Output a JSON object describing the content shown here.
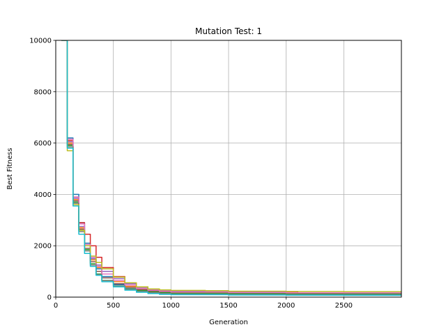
{
  "chart_data": {
    "type": "line",
    "title": "Mutation Test: 1",
    "xlabel": "Generation",
    "ylabel": "Best Fitness",
    "xlim": [
      0,
      3000
    ],
    "ylim": [
      0,
      10000
    ],
    "xticks": [
      0,
      500,
      1000,
      1500,
      2000,
      2500
    ],
    "yticks": [
      0,
      2000,
      4000,
      6000,
      8000,
      10000
    ],
    "grid": true,
    "series": [
      {
        "color": "#1f77b4",
        "x": [
          50,
          100,
          150,
          200,
          250,
          300,
          350,
          400,
          500,
          600,
          700,
          800,
          900,
          1000,
          1500,
          2000,
          2500,
          3000
        ],
        "y": [
          10000,
          6200,
          4000,
          2900,
          2100,
          1500,
          1100,
          800,
          480,
          330,
          230,
          160,
          130,
          110,
          95,
          90,
          85,
          80
        ]
      },
      {
        "color": "#ff7f0e",
        "x": [
          50,
          100,
          150,
          200,
          250,
          300,
          350,
          400,
          500,
          600,
          700,
          800,
          900,
          1000,
          1500,
          2000,
          2500,
          3000
        ],
        "y": [
          10000,
          6000,
          3800,
          2700,
          2000,
          1450,
          1150,
          900,
          600,
          420,
          300,
          230,
          200,
          180,
          160,
          150,
          145,
          140
        ]
      },
      {
        "color": "#2ca02c",
        "x": [
          50,
          100,
          150,
          200,
          250,
          300,
          350,
          400,
          500,
          600,
          700,
          800,
          900,
          1000,
          1500,
          2000,
          2500,
          3000
        ],
        "y": [
          10000,
          5900,
          3700,
          2600,
          1850,
          1300,
          900,
          650,
          430,
          320,
          250,
          200,
          170,
          150,
          130,
          120,
          115,
          110
        ]
      },
      {
        "color": "#d62728",
        "x": [
          50,
          100,
          150,
          200,
          250,
          300,
          350,
          400,
          500,
          600,
          700,
          800,
          900,
          1000,
          1500,
          1700,
          2000,
          2090,
          2100,
          2500,
          3000
        ],
        "y": [
          10000,
          6100,
          3900,
          2900,
          2450,
          2000,
          1550,
          1150,
          800,
          550,
          400,
          320,
          270,
          240,
          215,
          215,
          215,
          215,
          160,
          160,
          160
        ]
      },
      {
        "color": "#9467bd",
        "x": [
          50,
          100,
          150,
          200,
          250,
          300,
          350,
          400,
          500,
          600,
          700,
          800,
          900,
          1000,
          1500,
          1670,
          2000,
          2500,
          3000
        ],
        "y": [
          10000,
          6050,
          3850,
          2750,
          2000,
          1500,
          1250,
          1000,
          720,
          520,
          380,
          300,
          260,
          240,
          220,
          210,
          170,
          160,
          160
        ]
      },
      {
        "color": "#8c564b",
        "x": [
          50,
          100,
          150,
          200,
          250,
          300,
          350,
          400,
          500,
          600,
          700,
          800,
          900,
          1000,
          1500,
          2000,
          2500,
          3000
        ],
        "y": [
          10000,
          5950,
          3750,
          2650,
          1900,
          1380,
          1000,
          750,
          520,
          380,
          290,
          240,
          210,
          190,
          170,
          160,
          155,
          150
        ]
      },
      {
        "color": "#e377c2",
        "x": [
          50,
          100,
          150,
          200,
          250,
          300,
          350,
          400,
          500,
          600,
          700,
          800,
          900,
          1000,
          1500,
          2000,
          2500,
          3000
        ],
        "y": [
          10000,
          6150,
          3900,
          2850,
          2050,
          1550,
          1200,
          900,
          650,
          470,
          340,
          270,
          230,
          200,
          180,
          170,
          165,
          160
        ]
      },
      {
        "color": "#7f7f7f",
        "x": [
          50,
          100,
          150,
          200,
          250,
          300,
          350,
          400,
          500,
          600,
          700,
          800,
          900,
          1000,
          1500,
          2000,
          2500,
          3000
        ],
        "y": [
          10000,
          5850,
          3650,
          2550,
          1800,
          1250,
          880,
          640,
          420,
          300,
          220,
          170,
          140,
          120,
          100,
          95,
          92,
          90
        ]
      },
      {
        "color": "#bcbd22",
        "x": [
          50,
          100,
          150,
          200,
          250,
          300,
          350,
          400,
          500,
          600,
          700,
          800,
          900,
          1000,
          1300,
          1500,
          2000,
          2500,
          3000
        ],
        "y": [
          10000,
          5700,
          3600,
          2600,
          2000,
          1600,
          1350,
          1100,
          780,
          560,
          400,
          320,
          280,
          260,
          250,
          230,
          220,
          215,
          210
        ]
      },
      {
        "color": "#17becf",
        "x": [
          50,
          100,
          150,
          200,
          250,
          300,
          350,
          400,
          500,
          600,
          700,
          800,
          900,
          1000,
          1500,
          2000,
          2500,
          3000
        ],
        "y": [
          10000,
          5800,
          3550,
          2450,
          1700,
          1200,
          850,
          600,
          400,
          270,
          190,
          140,
          110,
          95,
          80,
          75,
          72,
          70
        ]
      }
    ]
  }
}
